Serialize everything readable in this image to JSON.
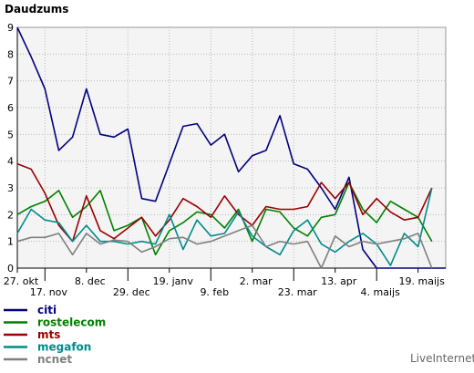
{
  "chart_data": {
    "type": "line",
    "title": "Daudzums",
    "brand": "LiveInternet",
    "ylim": [
      0,
      9
    ],
    "y_ticks": [
      0,
      1,
      2,
      3,
      4,
      5,
      6,
      7,
      8,
      9
    ],
    "grid": true,
    "legend_position": "bottom-left",
    "x_count": 32,
    "x_tick_labels": [
      {
        "index": 0,
        "label": "27. okt",
        "row": 1
      },
      {
        "index": 2,
        "label": "17. nov",
        "row": 2
      },
      {
        "index": 5,
        "label": "8. dec",
        "row": 1
      },
      {
        "index": 8,
        "label": "29. dec",
        "row": 2
      },
      {
        "index": 11,
        "label": "19. janv",
        "row": 1
      },
      {
        "index": 14,
        "label": "9. feb",
        "row": 2
      },
      {
        "index": 17,
        "label": "2. mar",
        "row": 1
      },
      {
        "index": 20,
        "label": "23. mar",
        "row": 2
      },
      {
        "index": 23,
        "label": "13. apr",
        "row": 1
      },
      {
        "index": 26,
        "label": "4. maijs",
        "row": 2
      },
      {
        "index": 29,
        "label": "19. maijs",
        "row": 1
      }
    ],
    "series": [
      {
        "name": "citi",
        "color": "#000080",
        "values": [
          9,
          7.9,
          6.7,
          4.4,
          4.9,
          6.7,
          5.0,
          4.9,
          5.2,
          2.6,
          2.5,
          3.9,
          5.3,
          5.4,
          4.6,
          5.0,
          3.6,
          4.2,
          4.4,
          5.7,
          3.9,
          3.7,
          3.0,
          2.2,
          3.4,
          0.7,
          0.0,
          0.0,
          0.0,
          0.0,
          0.0,
          0.0
        ]
      },
      {
        "name": "rostelecom",
        "color": "#008000",
        "values": [
          2.0,
          2.3,
          2.5,
          2.9,
          1.9,
          2.3,
          2.9,
          1.4,
          1.6,
          1.9,
          0.5,
          1.4,
          1.7,
          2.1,
          2.0,
          1.5,
          2.2,
          1.0,
          2.2,
          2.1,
          1.5,
          1.2,
          1.9,
          2.0,
          3.2,
          2.2,
          1.7,
          2.5,
          2.2,
          1.9,
          1.0
        ]
      },
      {
        "name": "mts",
        "color": "#990000",
        "values": [
          3.9,
          3.7,
          2.8,
          1.6,
          1.0,
          2.7,
          1.4,
          1.1,
          1.5,
          1.9,
          1.2,
          1.8,
          2.6,
          2.3,
          1.9,
          2.7,
          2.0,
          1.6,
          2.3,
          2.2,
          2.2,
          2.3,
          3.2,
          2.6,
          3.2,
          2.0,
          2.6,
          2.1,
          1.8,
          1.9,
          3.0
        ]
      },
      {
        "name": "megafon",
        "color": "#008B8B",
        "values": [
          1.3,
          2.2,
          1.8,
          1.7,
          1.0,
          1.6,
          1.0,
          1.0,
          0.9,
          1.0,
          0.9,
          2.0,
          0.7,
          1.8,
          1.2,
          1.3,
          2.1,
          1.2,
          0.8,
          0.5,
          1.4,
          1.8,
          0.9,
          0.6,
          1.0,
          1.3,
          0.9,
          0.1,
          1.3,
          0.8,
          3.0
        ]
      },
      {
        "name": "ncnet",
        "color": "#808080",
        "values": [
          1.0,
          1.15,
          1.15,
          1.3,
          0.5,
          1.3,
          0.9,
          1.05,
          1.0,
          0.6,
          0.8,
          1.1,
          1.15,
          0.9,
          1.0,
          1.2,
          1.4,
          1.6,
          0.8,
          1.0,
          0.9,
          1.0,
          0.0,
          1.2,
          0.8,
          1.0,
          0.9,
          1.0,
          1.1,
          1.3,
          0.0
        ]
      }
    ]
  }
}
